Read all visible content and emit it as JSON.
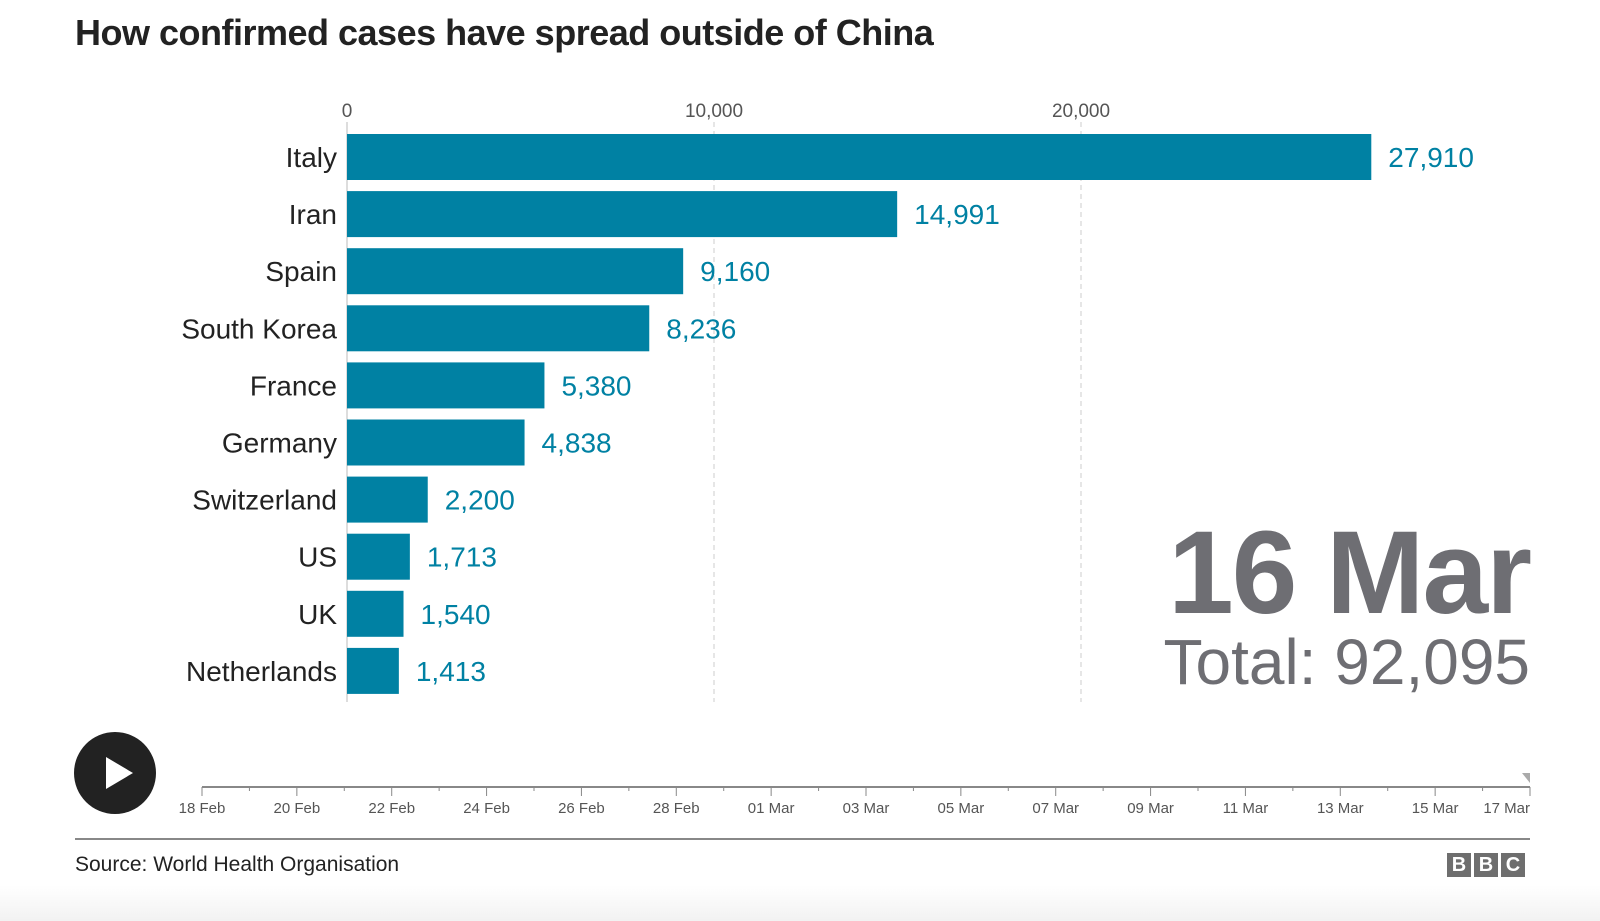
{
  "chart_data": {
    "type": "bar",
    "title": "How confirmed cases have spread outside of China",
    "categories": [
      "Italy",
      "Iran",
      "Spain",
      "South Korea",
      "France",
      "Germany",
      "Switzerland",
      "US",
      "UK",
      "Netherlands"
    ],
    "values": [
      27910,
      14991,
      9160,
      8236,
      5380,
      4838,
      2200,
      1713,
      1540,
      1413
    ],
    "value_labels": [
      "27,910",
      "14,991",
      "9,160",
      "8,236",
      "5,380",
      "4,838",
      "2,200",
      "1,713",
      "1,540",
      "1,413"
    ],
    "xticks": [
      0,
      10000,
      20000
    ],
    "xtick_labels": [
      "0",
      "10,000",
      "20,000"
    ],
    "xlim": [
      0,
      32000
    ],
    "bar_color": "#0081a3",
    "grid": true
  },
  "date_label": "16 Mar",
  "total_label": "Total: 92,095",
  "timeline": {
    "labels": [
      "18 Feb",
      "20 Feb",
      "22 Feb",
      "24 Feb",
      "26 Feb",
      "28 Feb",
      "01 Mar",
      "03 Mar",
      "05 Mar",
      "07 Mar",
      "09 Mar",
      "11 Mar",
      "13 Mar",
      "15 Mar",
      "17 Mar"
    ],
    "position_fraction": 1.0
  },
  "source": "Source: World Health Organisation",
  "logo": [
    "B",
    "B",
    "C"
  ]
}
